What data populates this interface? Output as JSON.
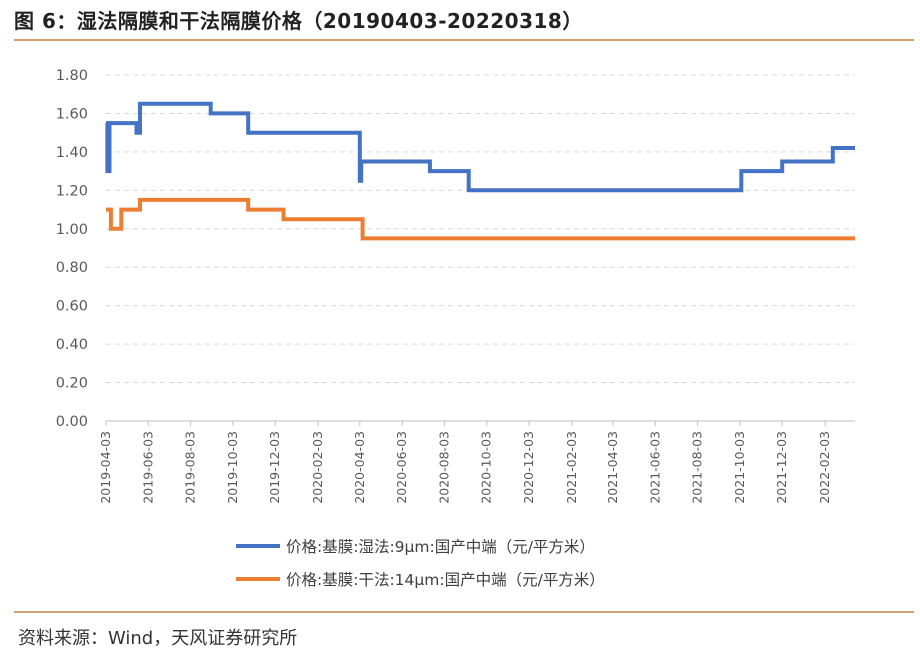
{
  "header": {
    "title": "图 6：湿法隔膜和干法隔膜价格（20190403-20220318）"
  },
  "footer": {
    "source": "资料来源：Wind，天风证券研究所"
  },
  "chart_data": {
    "type": "line",
    "x_type": "date",
    "y_ticks": [
      "0.00",
      "0.20",
      "0.40",
      "0.60",
      "0.80",
      "1.00",
      "1.20",
      "1.40",
      "1.60",
      "1.80"
    ],
    "ylim": [
      0,
      1.8
    ],
    "xlim": [
      "2019-04-03",
      "2022-03-18"
    ],
    "x_ticks": [
      "2019-04-03",
      "2019-06-03",
      "2019-08-03",
      "2019-10-03",
      "2019-12-03",
      "2020-02-03",
      "2020-04-03",
      "2020-06-03",
      "2020-08-03",
      "2020-10-03",
      "2020-12-03",
      "2021-02-03",
      "2021-04-03",
      "2021-06-03",
      "2021-08-03",
      "2021-10-03",
      "2021-12-03",
      "2022-02-03"
    ],
    "grid": true,
    "legend_position": "bottom",
    "series": [
      {
        "name": "价格:基膜:湿法:9μm:国产中端（元/平方米）",
        "color": "#4472c4",
        "points": [
          [
            "2019-04-03",
            1.55
          ],
          [
            "2019-04-05",
            1.3
          ],
          [
            "2019-04-08",
            1.55
          ],
          [
            "2019-05-17",
            1.5
          ],
          [
            "2019-05-22",
            1.65
          ],
          [
            "2019-09-01",
            1.6
          ],
          [
            "2019-10-25",
            1.5
          ],
          [
            "2020-04-03",
            1.25
          ],
          [
            "2020-04-05",
            1.35
          ],
          [
            "2020-07-13",
            1.3
          ],
          [
            "2020-09-07",
            1.2
          ],
          [
            "2021-10-05",
            1.3
          ],
          [
            "2021-12-03",
            1.35
          ],
          [
            "2022-02-14",
            1.42
          ],
          [
            "2022-03-18",
            1.42
          ]
        ]
      },
      {
        "name": "价格:基膜:干法:14μm:国产中端（元/平方米）",
        "color": "#ed7d31",
        "points": [
          [
            "2019-04-03",
            1.1
          ],
          [
            "2019-04-10",
            1.0
          ],
          [
            "2019-04-25",
            1.1
          ],
          [
            "2019-05-22",
            1.15
          ],
          [
            "2019-10-25",
            1.1
          ],
          [
            "2019-12-15",
            1.05
          ],
          [
            "2020-04-07",
            0.95
          ],
          [
            "2022-03-18",
            0.95
          ]
        ]
      }
    ]
  }
}
